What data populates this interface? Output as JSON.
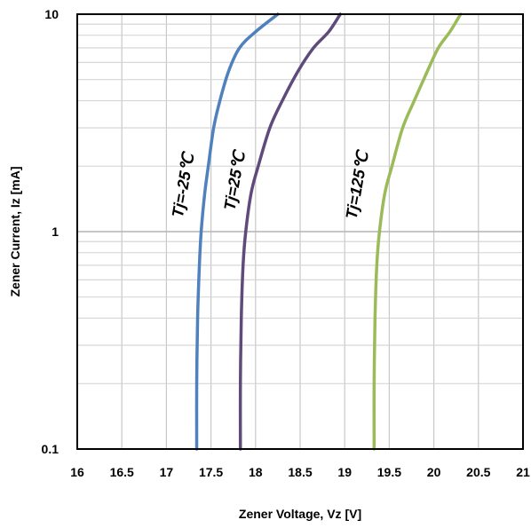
{
  "chart_data": {
    "type": "line",
    "title": "",
    "xlabel": "Zener Voltage, Vz [V]",
    "ylabel": "Zener Current, Iz [mA]",
    "xlim": [
      16,
      21
    ],
    "ylim": [
      0.1,
      10
    ],
    "yscale": "log",
    "grid": true,
    "legend": "none",
    "x_ticks": [
      16,
      16.5,
      17,
      17.5,
      18,
      18.5,
      19,
      19.5,
      20,
      20.5,
      21
    ],
    "x_tick_labels": [
      "16",
      "16.5",
      "17",
      "17.5",
      "18",
      "18.5",
      "19",
      "19.5",
      "20",
      "20.5",
      "21"
    ],
    "y_ticks": [
      0.1,
      1,
      10
    ],
    "y_tick_labels": [
      "0.1",
      "1",
      "10"
    ],
    "series": [
      {
        "label": "Tj=-25℃",
        "color": "#4f81bd",
        "points": [
          [
            17.34,
            0.1
          ],
          [
            17.34,
            0.2
          ],
          [
            17.35,
            0.4
          ],
          [
            17.37,
            0.7
          ],
          [
            17.39,
            1.0
          ],
          [
            17.43,
            1.5
          ],
          [
            17.47,
            2.0
          ],
          [
            17.53,
            3.0
          ],
          [
            17.6,
            4.0
          ],
          [
            17.7,
            5.5
          ],
          [
            17.82,
            7.0
          ],
          [
            18.0,
            8.3
          ],
          [
            18.25,
            10.0
          ]
        ]
      },
      {
        "label": "Tj=25℃",
        "color": "#604a7b",
        "points": [
          [
            17.83,
            0.1
          ],
          [
            17.83,
            0.2
          ],
          [
            17.84,
            0.4
          ],
          [
            17.86,
            0.7
          ],
          [
            17.89,
            1.0
          ],
          [
            17.95,
            1.5
          ],
          [
            18.03,
            2.0
          ],
          [
            18.16,
            3.0
          ],
          [
            18.3,
            4.0
          ],
          [
            18.48,
            5.5
          ],
          [
            18.65,
            7.0
          ],
          [
            18.82,
            8.3
          ],
          [
            18.95,
            10.0
          ]
        ]
      },
      {
        "label": "Tj=125℃",
        "color": "#9bbb59",
        "points": [
          [
            19.33,
            0.1
          ],
          [
            19.33,
            0.2
          ],
          [
            19.34,
            0.4
          ],
          [
            19.36,
            0.7
          ],
          [
            19.39,
            1.0
          ],
          [
            19.45,
            1.5
          ],
          [
            19.53,
            2.0
          ],
          [
            19.65,
            3.0
          ],
          [
            19.78,
            4.0
          ],
          [
            19.93,
            5.5
          ],
          [
            20.05,
            7.0
          ],
          [
            20.18,
            8.3
          ],
          [
            20.3,
            10.0
          ]
        ]
      }
    ]
  }
}
